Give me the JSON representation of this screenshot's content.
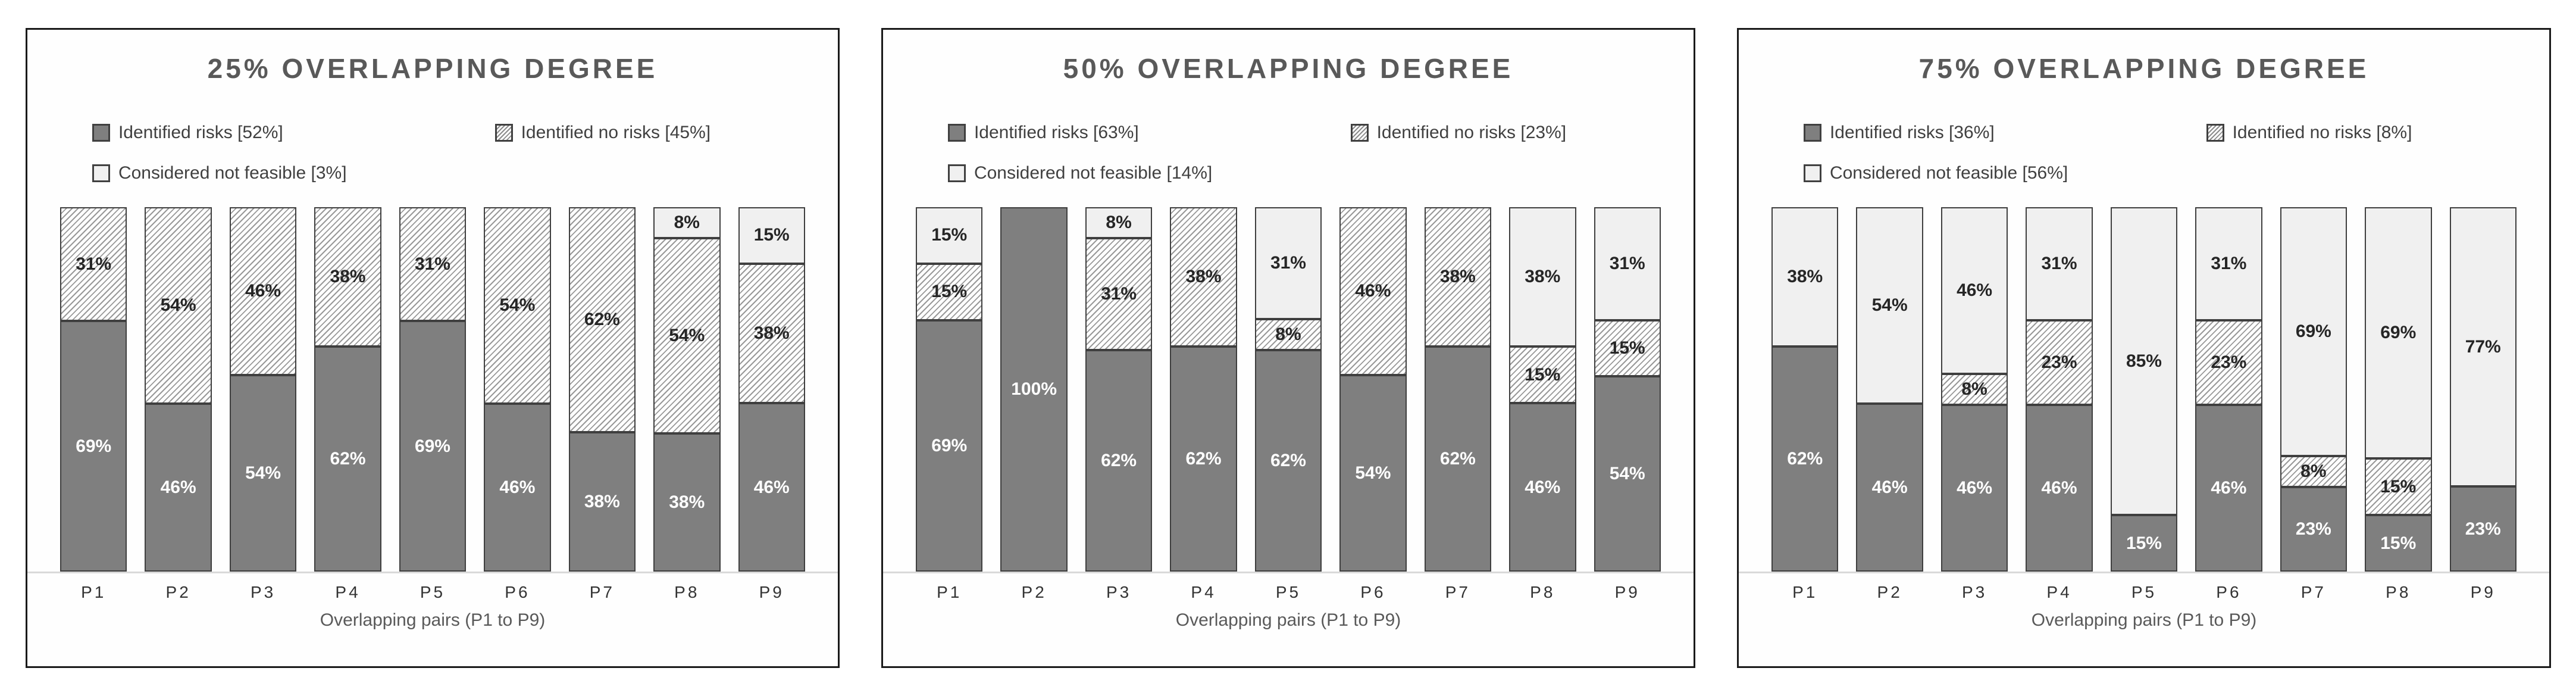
{
  "colors": {
    "identified_risks_fill": "#7f7f7f",
    "identified_no_risks_hatch_line": "#8c8c8c",
    "identified_no_risks_bg": "#ffffff",
    "considered_not_feasible_fill": "#f0f0f0",
    "segment_border": "#3f3f3f",
    "panel_border": "#1a1a1a",
    "title_text": "#595959",
    "legend_text": "#404040",
    "label_on_solid": "#ffffff",
    "label_on_light": "#262626",
    "baseline": "#d9d9d9"
  },
  "chart_data": [
    {
      "type": "bar",
      "stacked": true,
      "title": "25% OVERLAPPING DEGREE",
      "xlabel": "Overlapping pairs (P1 to P9)",
      "ylim": [
        0,
        100
      ],
      "unit": "percent",
      "legend_position": "top-left, two columns",
      "grid": false,
      "categories": [
        "P1",
        "P2",
        "P3",
        "P4",
        "P5",
        "P6",
        "P7",
        "P8",
        "P9"
      ],
      "series": [
        {
          "name": "Identified risks",
          "legend_label": "Identified risks [52%]",
          "overall_pct": 52,
          "values": [
            69,
            46,
            54,
            62,
            69,
            46,
            38,
            38,
            46
          ],
          "labels": [
            "69%",
            "46%",
            "54%",
            "62%",
            "69%",
            "46%",
            "38%",
            "38%",
            "46%"
          ]
        },
        {
          "name": "Identified no risks",
          "legend_label": "Identified no risks [45%]",
          "overall_pct": 45,
          "values": [
            31,
            54,
            46,
            38,
            31,
            54,
            62,
            54,
            38
          ],
          "labels": [
            "31%",
            "54%",
            "46%",
            "38%",
            "31%",
            "54%",
            "62%",
            "54%",
            "38%"
          ]
        },
        {
          "name": "Considered not feasible",
          "legend_label": "Considered not feasible [3%]",
          "overall_pct": 3,
          "values": [
            0,
            0,
            0,
            0,
            0,
            0,
            0,
            8,
            15
          ],
          "labels": [
            null,
            null,
            null,
            null,
            null,
            null,
            null,
            "8%",
            "15%"
          ]
        }
      ]
    },
    {
      "type": "bar",
      "stacked": true,
      "title": "50% OVERLAPPING DEGREE",
      "xlabel": "Overlapping pairs (P1 to P9)",
      "ylim": [
        0,
        100
      ],
      "unit": "percent",
      "legend_position": "top-left, two columns",
      "grid": false,
      "categories": [
        "P1",
        "P2",
        "P3",
        "P4",
        "P5",
        "P6",
        "P7",
        "P8",
        "P9"
      ],
      "series": [
        {
          "name": "Identified risks",
          "legend_label": "Identified risks [63%]",
          "overall_pct": 63,
          "values": [
            69,
            100,
            62,
            62,
            62,
            54,
            62,
            46,
            54
          ],
          "labels": [
            "69%",
            "100%",
            "62%",
            "62%",
            "62%",
            "54%",
            "62%",
            "46%",
            "54%"
          ]
        },
        {
          "name": "Identified no risks",
          "legend_label": "Identified no risks [23%]",
          "overall_pct": 23,
          "values": [
            15,
            0,
            31,
            38,
            8,
            46,
            38,
            15,
            15
          ],
          "labels": [
            "15%",
            null,
            "31%",
            "38%",
            "8%",
            "46%",
            "38%",
            "15%",
            "15%"
          ]
        },
        {
          "name": "Considered not feasible",
          "legend_label": "Considered not feasible [14%]",
          "overall_pct": 14,
          "values": [
            15,
            0,
            8,
            0,
            31,
            0,
            0,
            38,
            31
          ],
          "labels": [
            "15%",
            null,
            "8%",
            null,
            "31%",
            null,
            null,
            "38%",
            "31%"
          ]
        }
      ]
    },
    {
      "type": "bar",
      "stacked": true,
      "title": "75% OVERLAPPING DEGREE",
      "xlabel": "Overlapping pairs (P1 to P9)",
      "ylim": [
        0,
        100
      ],
      "unit": "percent",
      "legend_position": "top-left, two columns",
      "grid": false,
      "categories": [
        "P1",
        "P2",
        "P3",
        "P4",
        "P5",
        "P6",
        "P7",
        "P8",
        "P9"
      ],
      "series": [
        {
          "name": "Identified risks",
          "legend_label": "Identified risks [36%]",
          "overall_pct": 36,
          "values": [
            62,
            46,
            46,
            46,
            15,
            46,
            23,
            15,
            23
          ],
          "labels": [
            "62%",
            "46%",
            "46%",
            "46%",
            "15%",
            "46%",
            "23%",
            "15%",
            "23%"
          ]
        },
        {
          "name": "Identified no risks",
          "legend_label": "Identified no risks [8%]",
          "overall_pct": 8,
          "values": [
            0,
            0,
            8,
            23,
            0,
            23,
            8,
            15,
            0
          ],
          "labels": [
            null,
            null,
            "8%",
            "23%",
            null,
            "23%",
            "8%",
            "15%",
            null
          ]
        },
        {
          "name": "Considered not feasible",
          "legend_label": "Considered not feasible [56%]",
          "overall_pct": 56,
          "values": [
            38,
            54,
            46,
            31,
            85,
            31,
            69,
            69,
            77
          ],
          "labels": [
            "38%",
            "54%",
            "46%",
            "31%",
            "85%",
            "31%",
            "69%",
            "69%",
            "77%"
          ]
        }
      ]
    }
  ]
}
